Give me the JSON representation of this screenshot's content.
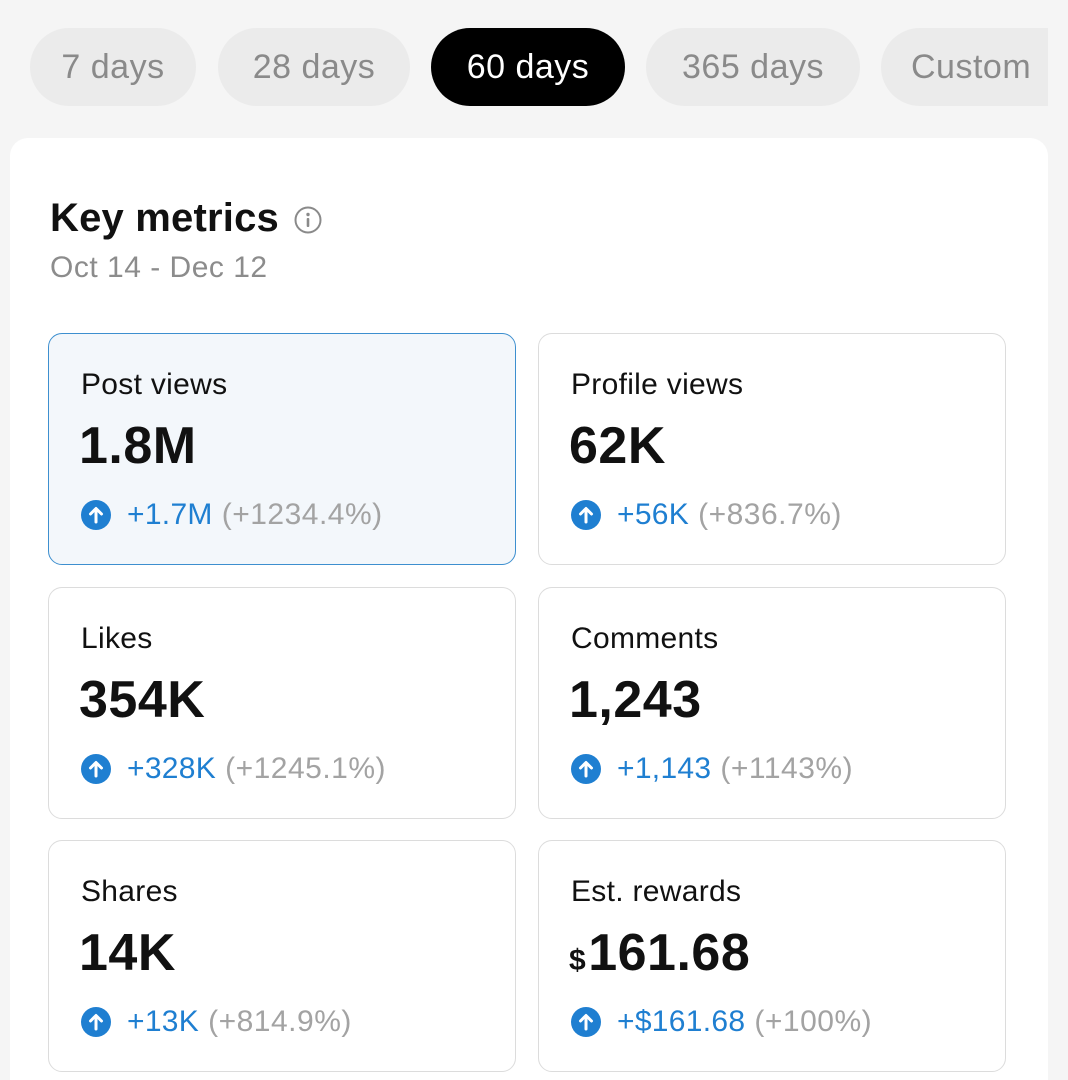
{
  "range_options": [
    "7 days",
    "28 days",
    "60 days",
    "365 days",
    "Custom"
  ],
  "active_range": "60 days",
  "key_metrics": {
    "title": "Key metrics",
    "date_range": "Oct 14 - Dec 12"
  },
  "metrics": [
    {
      "label": "Post views",
      "value": "1.8M",
      "change": "+1.7M",
      "change_pct": "(+1234.4%)"
    },
    {
      "label": "Profile views",
      "value": "62K",
      "change": "+56K",
      "change_pct": "(+836.7%)"
    },
    {
      "label": "Likes",
      "value": "354K",
      "change": "+328K",
      "change_pct": "(+1245.1%)"
    },
    {
      "label": "Comments",
      "value": "1,243",
      "change": "+1,143",
      "change_pct": "(+1143%)"
    },
    {
      "label": "Shares",
      "value": "14K",
      "change": "+13K",
      "change_pct": "(+814.9%)"
    },
    {
      "label": "Est. rewards",
      "currency": "$",
      "value": "161.68",
      "change": "+$161.68",
      "change_pct": "(+100%)"
    }
  ],
  "colors": {
    "accent_blue": "#1f7fd1",
    "active_pill": "#000000",
    "selected_tile_border": "#3d8fcf"
  },
  "icons": {
    "info": "info-circle-icon",
    "trend": "arrow-up-circle-icon"
  }
}
